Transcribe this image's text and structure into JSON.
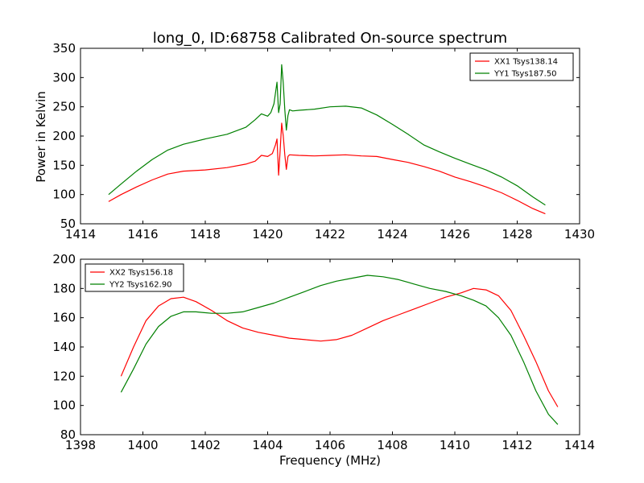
{
  "figure": {
    "title": "long_0, ID:68758 Calibrated On-source spectrum",
    "xlabel": "Frequency (MHz)",
    "ylabel": "Power in Kelvin"
  },
  "chart_data": [
    {
      "type": "line",
      "title": "long_0, ID:68758 Calibrated On-source spectrum",
      "xlabel": "",
      "ylabel": "Power in Kelvin",
      "xlim": [
        1414,
        1430
      ],
      "ylim": [
        50,
        350
      ],
      "xticks": [
        1414,
        1416,
        1418,
        1420,
        1422,
        1424,
        1426,
        1428,
        1430
      ],
      "yticks": [
        50,
        100,
        150,
        200,
        250,
        300,
        350
      ],
      "grid": false,
      "legend": "top-right",
      "series": [
        {
          "name": "XX1 Tsys138.14",
          "color": "#ff0000",
          "x": [
            1414.9,
            1415.3,
            1415.8,
            1416.3,
            1416.8,
            1417.3,
            1418.0,
            1418.7,
            1419.3,
            1419.6,
            1419.8,
            1420.0,
            1420.15,
            1420.25,
            1420.3,
            1420.35,
            1420.4,
            1420.45,
            1420.5,
            1420.55,
            1420.6,
            1420.65,
            1420.7,
            1421.0,
            1421.5,
            1422.0,
            1422.5,
            1423.0,
            1423.5,
            1424.0,
            1424.5,
            1425.0,
            1425.5,
            1426.0,
            1426.5,
            1427.0,
            1427.5,
            1428.0,
            1428.5,
            1428.9
          ],
          "y": [
            88,
            100,
            113,
            125,
            135,
            140,
            142,
            146,
            152,
            157,
            167,
            165,
            170,
            185,
            195,
            133,
            175,
            222,
            200,
            168,
            143,
            165,
            168,
            167,
            166,
            167,
            168,
            166,
            165,
            160,
            155,
            148,
            140,
            130,
            122,
            113,
            103,
            90,
            76,
            67
          ]
        },
        {
          "name": "YY1 Tsys187.50",
          "color": "#008000",
          "x": [
            1414.9,
            1415.3,
            1415.8,
            1416.3,
            1416.8,
            1417.3,
            1418.0,
            1418.7,
            1419.3,
            1419.6,
            1419.8,
            1420.0,
            1420.1,
            1420.2,
            1420.3,
            1420.35,
            1420.4,
            1420.45,
            1420.5,
            1420.55,
            1420.6,
            1420.65,
            1420.7,
            1420.8,
            1421.0,
            1421.5,
            1422.0,
            1422.5,
            1423.0,
            1423.5,
            1424.0,
            1424.5,
            1425.0,
            1425.5,
            1426.0,
            1426.5,
            1427.0,
            1427.5,
            1428.0,
            1428.5,
            1428.9
          ],
          "y": [
            100,
            118,
            140,
            160,
            176,
            186,
            195,
            203,
            215,
            228,
            238,
            234,
            240,
            255,
            292,
            240,
            255,
            322,
            290,
            245,
            210,
            235,
            245,
            243,
            244,
            246,
            250,
            251,
            248,
            236,
            220,
            203,
            185,
            173,
            162,
            152,
            142,
            130,
            115,
            96,
            82
          ]
        }
      ]
    },
    {
      "type": "line",
      "title": "",
      "xlabel": "Frequency (MHz)",
      "ylabel": "",
      "xlim": [
        1398,
        1414
      ],
      "ylim": [
        80,
        200
      ],
      "xticks": [
        1398,
        1400,
        1402,
        1404,
        1406,
        1408,
        1410,
        1412,
        1414
      ],
      "yticks": [
        80,
        100,
        120,
        140,
        160,
        180,
        200
      ],
      "grid": false,
      "legend": "top-left",
      "series": [
        {
          "name": "XX2 Tsys156.18",
          "color": "#ff0000",
          "x": [
            1399.3,
            1399.7,
            1400.1,
            1400.5,
            1400.9,
            1401.3,
            1401.7,
            1402.2,
            1402.7,
            1403.2,
            1403.7,
            1404.2,
            1404.7,
            1405.2,
            1405.7,
            1406.2,
            1406.7,
            1407.2,
            1407.7,
            1408.2,
            1408.7,
            1409.2,
            1409.7,
            1410.2,
            1410.6,
            1411.0,
            1411.4,
            1411.8,
            1412.2,
            1412.6,
            1413.0,
            1413.3
          ],
          "y": [
            120,
            140,
            158,
            168,
            173,
            174,
            171,
            165,
            158,
            153,
            150,
            148,
            146,
            145,
            144,
            145,
            148,
            153,
            158,
            162,
            166,
            170,
            174,
            177,
            180,
            179,
            175,
            165,
            148,
            130,
            110,
            99
          ]
        },
        {
          "name": "YY2 Tsys162.90",
          "color": "#008000",
          "x": [
            1399.3,
            1399.7,
            1400.1,
            1400.5,
            1400.9,
            1401.3,
            1401.7,
            1402.2,
            1402.7,
            1403.2,
            1403.7,
            1404.2,
            1404.7,
            1405.2,
            1405.7,
            1406.2,
            1406.7,
            1407.2,
            1407.7,
            1408.2,
            1408.7,
            1409.2,
            1409.7,
            1410.2,
            1410.6,
            1411.0,
            1411.4,
            1411.8,
            1412.2,
            1412.6,
            1413.0,
            1413.3
          ],
          "y": [
            109,
            125,
            142,
            154,
            161,
            164,
            164,
            163,
            163,
            164,
            167,
            170,
            174,
            178,
            182,
            185,
            187,
            189,
            188,
            186,
            183,
            180,
            178,
            175,
            172,
            168,
            160,
            148,
            130,
            110,
            94,
            87
          ]
        }
      ]
    }
  ]
}
